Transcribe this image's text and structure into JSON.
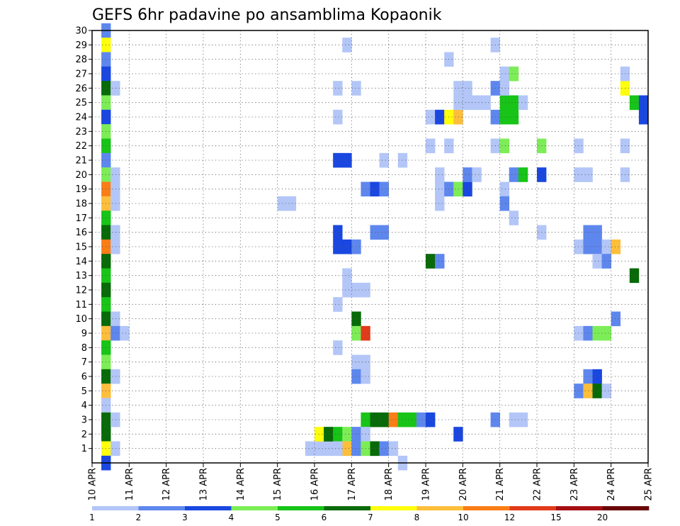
{
  "chart_data": {
    "type": "heatmap",
    "title": "GEFS 6hr padavine po ansamblima Kopaonik",
    "xlabel": "",
    "ylabel": "",
    "x_ticks": [
      "10 APR",
      "11 APR",
      "12 APR",
      "13 APR",
      "14 APR",
      "15 APR",
      "16 APR",
      "17 APR",
      "18 APR",
      "19 APR",
      "20 APR",
      "21 APR",
      "22 APR",
      "23 APR",
      "24 APR",
      "25 APR"
    ],
    "y_ticks": [
      "1",
      "2",
      "3",
      "4",
      "5",
      "6",
      "7",
      "8",
      "9",
      "10",
      "11",
      "12",
      "13",
      "14",
      "15",
      "16",
      "17",
      "18",
      "19",
      "20",
      "21",
      "22",
      "23",
      "24",
      "25",
      "26",
      "27",
      "28",
      "29",
      "30"
    ],
    "x_range": [
      "10 APR 00Z",
      "25 APR 00Z"
    ],
    "y_range": [
      0,
      30
    ],
    "grid": true,
    "colorbar": {
      "labels": [
        "1",
        "2",
        "3",
        "4",
        "5",
        "6",
        "7",
        "8",
        "10",
        "12",
        "15",
        "20"
      ],
      "colors": [
        "#b3c6f7",
        "#5e87ee",
        "#1a47e0",
        "#7ded57",
        "#17c417",
        "#086a08",
        "#ffff0c",
        "#fdbe3b",
        "#fa7d16",
        "#e13b1b",
        "#a50f12",
        "#6a0808"
      ]
    },
    "cells_format": [
      "member",
      "day_offset_from_10_APR",
      "6hr_step",
      "color_index"
    ],
    "cells": [
      [
        30,
        0,
        1,
        1
      ],
      [
        29,
        0,
        1,
        6
      ],
      [
        28,
        0,
        1,
        1
      ],
      [
        27,
        0,
        1,
        2
      ],
      [
        26,
        0,
        1,
        5
      ],
      [
        25,
        0,
        1,
        3
      ],
      [
        24,
        0,
        1,
        2
      ],
      [
        23,
        0,
        1,
        3
      ],
      [
        22,
        0,
        1,
        4
      ],
      [
        21,
        0,
        1,
        1
      ],
      [
        20,
        0,
        1,
        3
      ],
      [
        19,
        0,
        1,
        8
      ],
      [
        18,
        0,
        1,
        7
      ],
      [
        17,
        0,
        1,
        4
      ],
      [
        16,
        0,
        1,
        5
      ],
      [
        15,
        0,
        1,
        8
      ],
      [
        14,
        0,
        1,
        5
      ],
      [
        13,
        0,
        1,
        4
      ],
      [
        12,
        0,
        1,
        5
      ],
      [
        11,
        0,
        1,
        4
      ],
      [
        10,
        0,
        1,
        5
      ],
      [
        9,
        0,
        1,
        7
      ],
      [
        8,
        0,
        1,
        4
      ],
      [
        7,
        0,
        1,
        3
      ],
      [
        6,
        0,
        1,
        5
      ],
      [
        5,
        0,
        1,
        7
      ],
      [
        4,
        0,
        1,
        0
      ],
      [
        3,
        0,
        1,
        5
      ],
      [
        2,
        0,
        1,
        5
      ],
      [
        1,
        0,
        1,
        6
      ],
      [
        0,
        0,
        1,
        2
      ],
      [
        26,
        0,
        2,
        0
      ],
      [
        20,
        0,
        2,
        0
      ],
      [
        19,
        0,
        2,
        0
      ],
      [
        18,
        0,
        2,
        0
      ],
      [
        16,
        0,
        2,
        0
      ],
      [
        15,
        0,
        2,
        0
      ],
      [
        10,
        0,
        2,
        0
      ],
      [
        9,
        0,
        2,
        1
      ],
      [
        9,
        0,
        3,
        0
      ],
      [
        6,
        0,
        2,
        0
      ],
      [
        3,
        0,
        2,
        0
      ],
      [
        1,
        0,
        2,
        0
      ],
      [
        18,
        5,
        0,
        0
      ],
      [
        18,
        5,
        1,
        0
      ],
      [
        1,
        5,
        3,
        0
      ],
      [
        1,
        6,
        0,
        0
      ],
      [
        1,
        6,
        1,
        0
      ],
      [
        2,
        6,
        0,
        6
      ],
      [
        2,
        6,
        1,
        5
      ],
      [
        2,
        6,
        2,
        4
      ],
      [
        2,
        6,
        3,
        3
      ],
      [
        1,
        6,
        3,
        7
      ],
      [
        1,
        6,
        2,
        0
      ],
      [
        29,
        6,
        3,
        0
      ],
      [
        26,
        6,
        2,
        0
      ],
      [
        26,
        7,
        0,
        0
      ],
      [
        24,
        6,
        2,
        0
      ],
      [
        21,
        6,
        2,
        2
      ],
      [
        21,
        6,
        3,
        2
      ],
      [
        16,
        6,
        2,
        2
      ],
      [
        15,
        6,
        2,
        2
      ],
      [
        15,
        6,
        3,
        2
      ],
      [
        15,
        7,
        0,
        1
      ],
      [
        12,
        6,
        3,
        0
      ],
      [
        12,
        7,
        0,
        0
      ],
      [
        12,
        7,
        1,
        0
      ],
      [
        13,
        6,
        3,
        0
      ],
      [
        11,
        6,
        2,
        0
      ],
      [
        10,
        7,
        0,
        5
      ],
      [
        9,
        7,
        0,
        3
      ],
      [
        9,
        7,
        1,
        9
      ],
      [
        8,
        6,
        2,
        0
      ],
      [
        7,
        7,
        0,
        0
      ],
      [
        7,
        7,
        1,
        0
      ],
      [
        6,
        7,
        0,
        1
      ],
      [
        6,
        7,
        1,
        0
      ],
      [
        3,
        7,
        1,
        4
      ],
      [
        3,
        7,
        2,
        5
      ],
      [
        3,
        7,
        3,
        5
      ],
      [
        3,
        8,
        0,
        8
      ],
      [
        3,
        8,
        1,
        4
      ],
      [
        3,
        8,
        2,
        4
      ],
      [
        3,
        8,
        3,
        1
      ],
      [
        3,
        9,
        0,
        2
      ],
      [
        2,
        7,
        0,
        1
      ],
      [
        2,
        7,
        1,
        0
      ],
      [
        1,
        7,
        0,
        1
      ],
      [
        1,
        7,
        1,
        3
      ],
      [
        1,
        7,
        2,
        5
      ],
      [
        1,
        7,
        3,
        1
      ],
      [
        1,
        8,
        0,
        0
      ],
      [
        0,
        8,
        1,
        0
      ],
      [
        19,
        7,
        1,
        1
      ],
      [
        19,
        7,
        2,
        2
      ],
      [
        19,
        7,
        3,
        1
      ],
      [
        16,
        7,
        2,
        1
      ],
      [
        16,
        7,
        3,
        1
      ],
      [
        21,
        7,
        3,
        0
      ],
      [
        21,
        8,
        1,
        0
      ],
      [
        24,
        9,
        0,
        0
      ],
      [
        24,
        9,
        1,
        2
      ],
      [
        24,
        9,
        2,
        6
      ],
      [
        24,
        9,
        3,
        7
      ],
      [
        22,
        9,
        0,
        0
      ],
      [
        22,
        9,
        2,
        0
      ],
      [
        19,
        9,
        1,
        0
      ],
      [
        19,
        9,
        2,
        1
      ],
      [
        19,
        9,
        3,
        3
      ],
      [
        19,
        10,
        0,
        2
      ],
      [
        18,
        9,
        1,
        0
      ],
      [
        14,
        9,
        0,
        5
      ],
      [
        14,
        9,
        1,
        1
      ],
      [
        20,
        9,
        1,
        0
      ],
      [
        28,
        9,
        2,
        0
      ],
      [
        26,
        9,
        3,
        0
      ],
      [
        26,
        10,
        0,
        0
      ],
      [
        25,
        9,
        3,
        0
      ],
      [
        25,
        10,
        0,
        0
      ],
      [
        2,
        9,
        3,
        2
      ],
      [
        20,
        10,
        0,
        1
      ],
      [
        20,
        10,
        1,
        0
      ],
      [
        25,
        10,
        1,
        0
      ],
      [
        25,
        10,
        2,
        0
      ],
      [
        24,
        10,
        3,
        1
      ],
      [
        24,
        11,
        0,
        4
      ],
      [
        24,
        11,
        1,
        4
      ],
      [
        25,
        11,
        0,
        4
      ],
      [
        25,
        11,
        1,
        4
      ],
      [
        25,
        11,
        2,
        0
      ],
      [
        22,
        10,
        3,
        0
      ],
      [
        22,
        11,
        0,
        3
      ],
      [
        26,
        10,
        3,
        1
      ],
      [
        26,
        11,
        0,
        0
      ],
      [
        27,
        11,
        0,
        0
      ],
      [
        29,
        10,
        3,
        0
      ],
      [
        20,
        11,
        1,
        1
      ],
      [
        20,
        11,
        2,
        4
      ],
      [
        19,
        11,
        0,
        0
      ],
      [
        18,
        11,
        0,
        1
      ],
      [
        17,
        11,
        1,
        0
      ],
      [
        27,
        11,
        1,
        3
      ],
      [
        3,
        10,
        3,
        1
      ],
      [
        3,
        11,
        1,
        0
      ],
      [
        3,
        11,
        2,
        0
      ],
      [
        22,
        12,
        0,
        3
      ],
      [
        22,
        13,
        0,
        0
      ],
      [
        20,
        12,
        0,
        2
      ],
      [
        20,
        13,
        0,
        0
      ],
      [
        20,
        13,
        1,
        0
      ],
      [
        16,
        12,
        0,
        0
      ],
      [
        15,
        13,
        0,
        0
      ],
      [
        15,
        13,
        1,
        1
      ],
      [
        15,
        13,
        2,
        1
      ],
      [
        15,
        13,
        3,
        0
      ],
      [
        16,
        13,
        1,
        1
      ],
      [
        16,
        13,
        2,
        1
      ],
      [
        14,
        13,
        2,
        0
      ],
      [
        14,
        13,
        3,
        1
      ],
      [
        10,
        14,
        0,
        1
      ],
      [
        9,
        13,
        0,
        0
      ],
      [
        9,
        13,
        1,
        1
      ],
      [
        9,
        13,
        2,
        3
      ],
      [
        9,
        13,
        3,
        3
      ],
      [
        6,
        13,
        1,
        1
      ],
      [
        6,
        13,
        2,
        2
      ],
      [
        5,
        13,
        0,
        1
      ],
      [
        5,
        13,
        1,
        7
      ],
      [
        5,
        13,
        2,
        5
      ],
      [
        5,
        13,
        3,
        0
      ],
      [
        15,
        14,
        0,
        7
      ],
      [
        26,
        14,
        1,
        6
      ],
      [
        25,
        14,
        2,
        4
      ],
      [
        25,
        14,
        3,
        2
      ],
      [
        22,
        14,
        1,
        0
      ],
      [
        20,
        14,
        1,
        0
      ],
      [
        27,
        14,
        1,
        0
      ],
      [
        13,
        14,
        2,
        5
      ],
      [
        24,
        14,
        3,
        2
      ]
    ]
  }
}
